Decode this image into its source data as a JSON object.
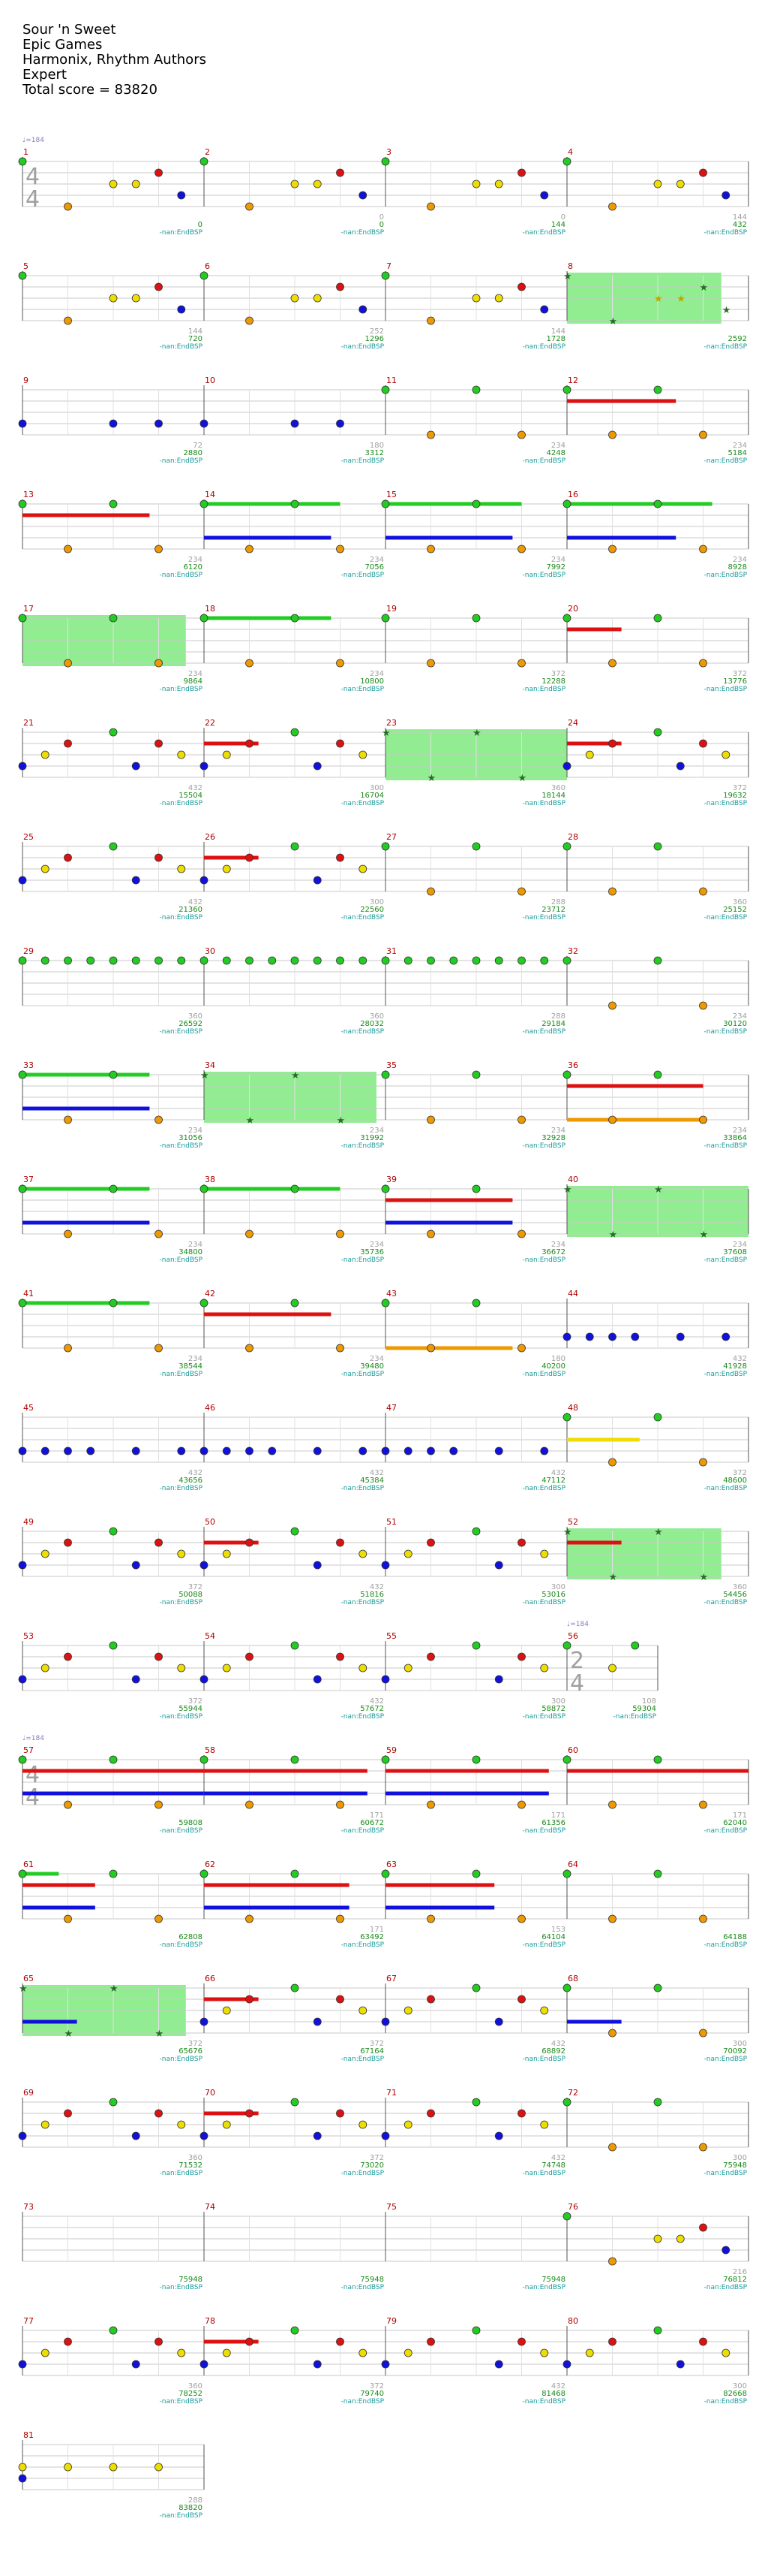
{
  "header": {
    "song": "Sour 'n Sweet",
    "artist": "Epic Games",
    "charter": "Harmonix, Rhythm Authors",
    "difficulty": "Expert",
    "total": "Total score = 83820"
  },
  "chart_data": {
    "type": "note-chart",
    "lanes": [
      "green",
      "red",
      "yellow",
      "blue",
      "orange"
    ],
    "colors": {
      "green": "#22cc22",
      "red": "#dd1111",
      "yellow": "#eedd00",
      "blue": "#1111dd",
      "orange": "#ee9900",
      "overdrive": "#90ee90",
      "staff": "#c8c8c8"
    },
    "tempo_marks": [
      {
        "label": "♩=184",
        "measure": 1
      },
      {
        "label": "♩=184",
        "measure": 56
      },
      {
        "label": "♩=184",
        "measure": 57
      }
    ],
    "time_signatures": [
      {
        "num": "4",
        "den": "4",
        "measure": 1
      },
      {
        "num": "2",
        "den": "4",
        "measure": 56
      },
      {
        "num": "4",
        "den": "4",
        "measure": 57
      }
    ],
    "annotation": "-nan:EndBSP",
    "rows": [
      {
        "measures": [
          1,
          2,
          3,
          4
        ],
        "scores": [
          "0",
          "0",
          "144",
          "432"
        ],
        "grey": [
          "",
          "0",
          "0",
          "144"
        ]
      },
      {
        "measures": [
          5,
          6,
          7,
          8
        ],
        "scores": [
          "720",
          "1296",
          "1728",
          "2592"
        ],
        "grey": [
          "144",
          "252",
          "144",
          ""
        ]
      },
      {
        "measures": [
          9,
          10,
          11,
          12
        ],
        "scores": [
          "2880",
          "3312",
          "4248",
          "5184"
        ],
        "grey": [
          "72",
          "180",
          "234",
          "234"
        ]
      },
      {
        "measures": [
          13,
          14,
          15,
          16
        ],
        "scores": [
          "6120",
          "7056",
          "7992",
          "8928"
        ],
        "grey": [
          "234",
          "234",
          "234",
          "234"
        ]
      },
      {
        "measures": [
          17,
          18,
          19,
          20
        ],
        "scores": [
          "9864",
          "10800",
          "12288",
          "13776"
        ],
        "grey": [
          "234",
          "234",
          "372",
          "372"
        ]
      },
      {
        "measures": [
          21,
          22,
          23,
          24
        ],
        "scores": [
          "15504",
          "16704",
          "18144",
          "19632"
        ],
        "grey": [
          "432",
          "300",
          "360",
          "372"
        ]
      },
      {
        "measures": [
          25,
          26,
          27,
          28
        ],
        "scores": [
          "21360",
          "22560",
          "23712",
          "25152"
        ],
        "grey": [
          "432",
          "300",
          "288",
          "360"
        ]
      },
      {
        "measures": [
          29,
          30,
          31,
          32
        ],
        "scores": [
          "26592",
          "28032",
          "29184",
          "30120"
        ],
        "grey": [
          "360",
          "360",
          "288",
          "234"
        ]
      },
      {
        "measures": [
          33,
          34,
          35,
          36
        ],
        "scores": [
          "31056",
          "31992",
          "32928",
          "33864"
        ],
        "grey": [
          "234",
          "234",
          "234",
          "234"
        ]
      },
      {
        "measures": [
          37,
          38,
          39,
          40
        ],
        "scores": [
          "34800",
          "35736",
          "36672",
          "37608"
        ],
        "grey": [
          "234",
          "234",
          "234",
          "234"
        ]
      },
      {
        "measures": [
          41,
          42,
          43,
          44
        ],
        "scores": [
          "38544",
          "39480",
          "40200",
          "41928"
        ],
        "grey": [
          "234",
          "234",
          "180",
          "432"
        ]
      },
      {
        "measures": [
          45,
          46,
          47,
          48
        ],
        "scores": [
          "43656",
          "45384",
          "47112",
          "48600"
        ],
        "grey": [
          "432",
          "432",
          "432",
          "372"
        ]
      },
      {
        "measures": [
          49,
          50,
          51,
          52
        ],
        "scores": [
          "50088",
          "51816",
          "53016",
          "54456"
        ],
        "grey": [
          "372",
          "432",
          "300",
          "360"
        ]
      },
      {
        "measures": [
          53,
          54,
          55,
          56
        ],
        "scores": [
          "55944",
          "57672",
          "58872",
          "59304"
        ],
        "grey": [
          "372",
          "432",
          "300",
          "108"
        ]
      },
      {
        "measures": [
          57,
          58,
          59,
          60
        ],
        "scores": [
          "59808",
          "60672",
          "61356",
          "62040"
        ],
        "grey": [
          "",
          "171",
          "171",
          "171"
        ]
      },
      {
        "measures": [
          61,
          62,
          63,
          64
        ],
        "scores": [
          "62808",
          "63492",
          "64104",
          "64188"
        ],
        "grey": [
          "",
          "171",
          "153",
          ""
        ]
      },
      {
        "measures": [
          65,
          66,
          67,
          68
        ],
        "scores": [
          "65676",
          "67164",
          "68892",
          "70092"
        ],
        "grey": [
          "372",
          "372",
          "432",
          "300"
        ]
      },
      {
        "measures": [
          69,
          70,
          71,
          72
        ],
        "scores": [
          "71532",
          "73020",
          "74748",
          "75948"
        ],
        "grey": [
          "360",
          "372",
          "432",
          "300"
        ]
      },
      {
        "measures": [
          73,
          74,
          75,
          76
        ],
        "scores": [
          "75948",
          "75948",
          "75948",
          "76812"
        ],
        "grey": [
          "",
          "",
          "",
          "216"
        ]
      },
      {
        "measures": [
          77,
          78,
          79,
          80
        ],
        "scores": [
          "78252",
          "79740",
          "81468",
          "82668"
        ],
        "grey": [
          "360",
          "372",
          "432",
          "300"
        ]
      },
      {
        "measures": [
          81
        ],
        "scores": [
          "83820"
        ],
        "grey": [
          "288"
        ]
      }
    ]
  }
}
